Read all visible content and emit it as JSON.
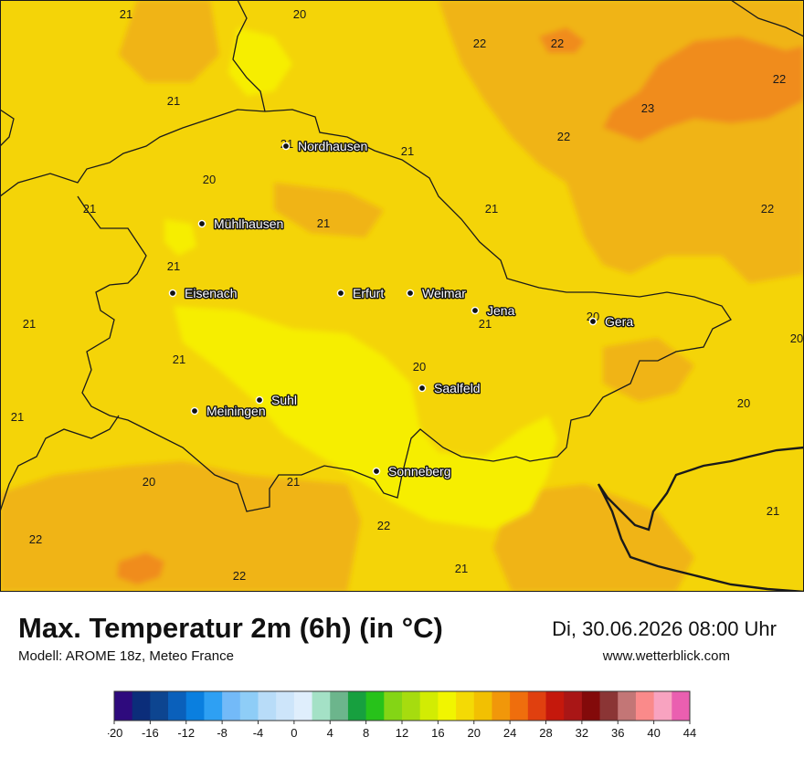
{
  "header": {
    "title": "Max. Temperatur 2m (6h) (in °C)",
    "model": "Modell: AROME 18z, Meteo France",
    "datetime": "Di, 30.06.2026 08:00 Uhr",
    "website": "www.wetterblick.com"
  },
  "map": {
    "region": "Thüringen",
    "cities": [
      {
        "name": "Nordhausen"
      },
      {
        "name": "Mühlhausen"
      },
      {
        "name": "Eisenach"
      },
      {
        "name": "Erfurt"
      },
      {
        "name": "Weimar"
      },
      {
        "name": "Jena"
      },
      {
        "name": "Gera"
      },
      {
        "name": "Suhl"
      },
      {
        "name": "Meiningen"
      },
      {
        "name": "Saalfeld"
      },
      {
        "name": "Sonneberg"
      }
    ],
    "temperature_labels": [
      "21",
      "20",
      "22",
      "22",
      "22",
      "21",
      "23",
      "22",
      "21",
      "21",
      "20",
      "21",
      "21",
      "22",
      "21",
      "21",
      "20",
      "21",
      "21",
      "20",
      "21",
      "20",
      "20",
      "21",
      "20",
      "21",
      "21",
      "22",
      "22",
      "22",
      "21",
      "22"
    ]
  },
  "legend": {
    "min": -20,
    "max": 44,
    "step": 2,
    "tick_labels": [
      "-20",
      "-16",
      "-12",
      "-8",
      "-4",
      "0",
      "4",
      "8",
      "12",
      "16",
      "20",
      "24",
      "28",
      "32",
      "36",
      "40",
      "44"
    ],
    "colors": [
      "#2e0a7d",
      "#0b2d7a",
      "#0d4590",
      "#0a60bb",
      "#0a7fdf",
      "#2ea0f3",
      "#73baf8",
      "#8ecdf7",
      "#b8dcf8",
      "#cde5fa",
      "#dfeefc",
      "#a4e1c6",
      "#6cb58c",
      "#17a03f",
      "#27c21a",
      "#84d515",
      "#a6dc0f",
      "#d2ec03",
      "#f1f500",
      "#f4da05",
      "#f2c002",
      "#f1970a",
      "#ef6e0d",
      "#e0400f",
      "#c5180c",
      "#a91616",
      "#830a0a",
      "#8b3535",
      "#c37676",
      "#fa8a8a",
      "#f8a3c0",
      "#ea5fb0"
    ]
  },
  "colors": {
    "base": "#f4d408",
    "warm": "#f0b412",
    "hot": "#f08c1e",
    "cool": "#f6ee04"
  }
}
